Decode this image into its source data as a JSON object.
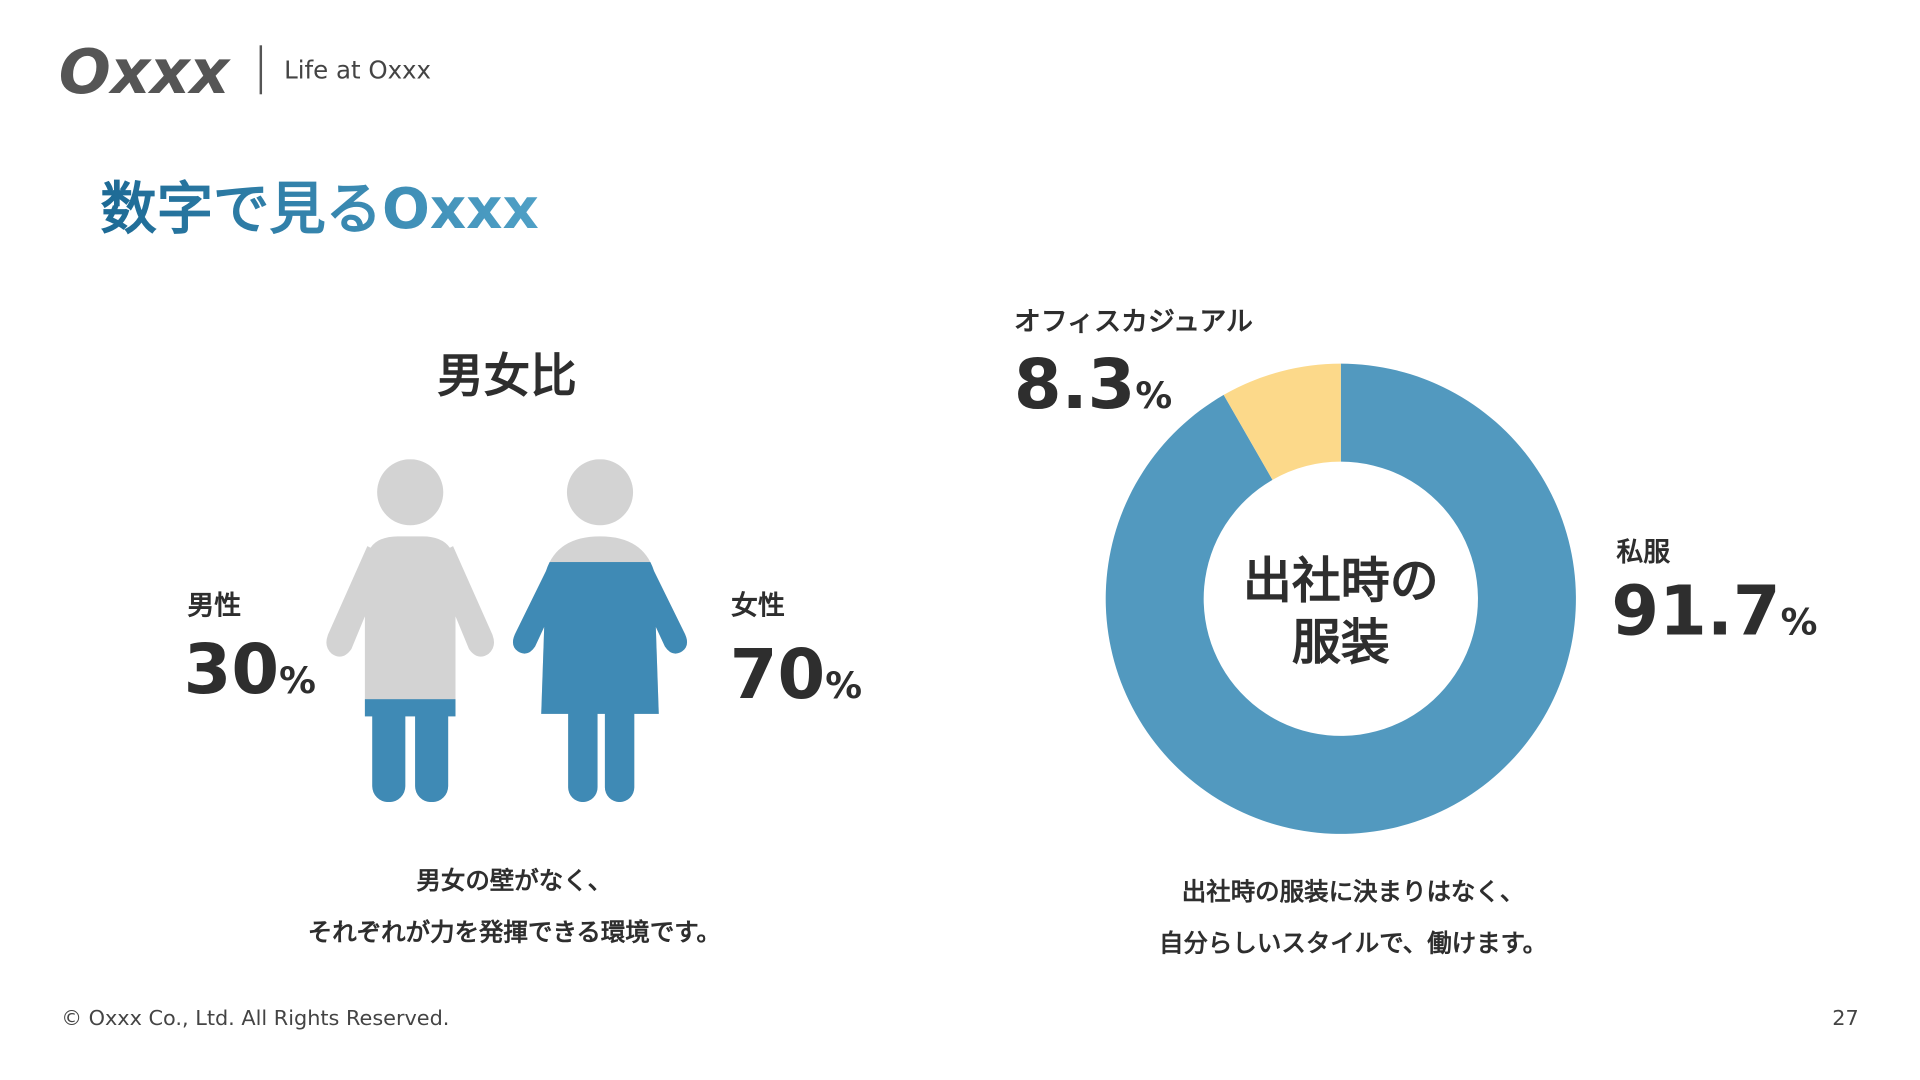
{
  "header": {
    "logo": "Oxxx",
    "tagline": "Life at Oxxx"
  },
  "title": "数字で見るOxxx",
  "chart_data": [
    {
      "type": "pictogram",
      "title": "男女比",
      "categories": [
        "男性",
        "女性"
      ],
      "values": [
        30,
        70
      ],
      "unit": "%",
      "colors": [
        "#3f8ab5",
        "#3f8ab5"
      ],
      "base_color": "#d3d3d3",
      "caption": [
        "男女の壁がなく、",
        "それぞれが力を発揮できる環境です。"
      ]
    },
    {
      "type": "donut",
      "center_label": [
        "出社時の",
        "服装"
      ],
      "categories": [
        "私服",
        "オフィスカジュアル"
      ],
      "values": [
        91.7,
        8.3
      ],
      "unit": "%",
      "colors": [
        "#5299bf",
        "#fcd98a"
      ],
      "caption": [
        "出社時の服装に決まりはなく、",
        "自分らしいスタイルで、働けます。"
      ]
    }
  ],
  "footer": {
    "copyright": "© Oxxx Co., Ltd. All Rights Reserved.",
    "page": "27"
  }
}
